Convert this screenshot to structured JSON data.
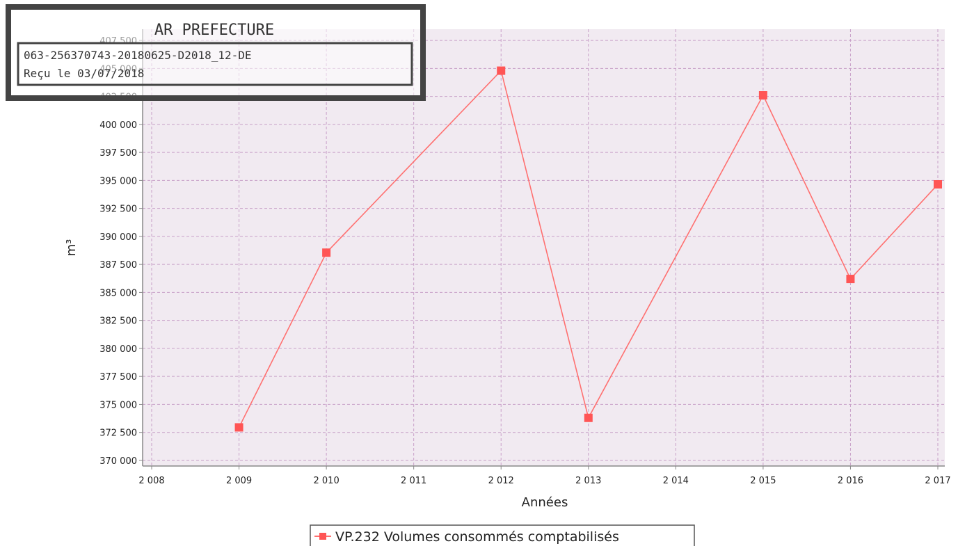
{
  "stamp": {
    "title": "AR PREFECTURE",
    "line1": "063-256370743-20180625-D2018_12-DE",
    "line2": "Reçu le 03/07/2018"
  },
  "chart_data": {
    "type": "line",
    "xlabel": "Années",
    "ylabel": "m³",
    "x_ticks": [
      "2 008",
      "2 009",
      "2 010",
      "2 011",
      "2 012",
      "2 013",
      "2 014",
      "2 015",
      "2 016",
      "2 017"
    ],
    "y_ticks": [
      "370 000",
      "372 500",
      "375 000",
      "377 500",
      "380 000",
      "382 500",
      "385 000",
      "387 500",
      "390 000",
      "392 500",
      "395 000",
      "397 500",
      "400 000",
      "402 500",
      "405 000",
      "407 500"
    ],
    "xlim": [
      2008,
      2017
    ],
    "ylim": [
      369500,
      408500
    ],
    "grid": true,
    "legend_position": "bottom-center",
    "series": [
      {
        "name": "VP.232 Volumes consommés comptabilisés",
        "color": "#ff5555",
        "x": [
          2009,
          2010,
          2012,
          2013,
          2015,
          2016,
          2017
        ],
        "y": [
          372950,
          388550,
          404800,
          373800,
          402600,
          386200,
          394650
        ]
      }
    ],
    "colors": {
      "plot_background": "#f1eaf1",
      "gridline": "#c8a0c8",
      "axis": "#888888",
      "marker": "#ff5555",
      "line": "#ff7070"
    }
  }
}
